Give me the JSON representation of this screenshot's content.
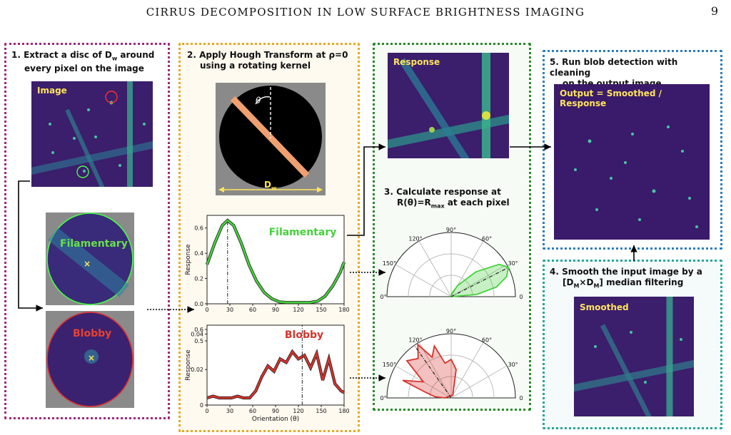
{
  "header": {
    "title": "CIRRUS DECOMPOSITION IN LOW SURFACE BRIGHTNESS IMAGING",
    "page_number": "9"
  },
  "steps": {
    "step1": "1. Extract a disc of Dᵤ around every pixel on the image",
    "step1_line1": "1.  Extract a disc of D",
    "step1_sub": "w",
    "step1_line1b": " around",
    "step1_line2": "every pixel on the image",
    "step2_line1": "2.  Apply Hough Transform at ρ=0",
    "step2_line2": "using a rotating kernel",
    "step3_line1": "3.  Calculate response at",
    "step3_line2a": "R(θ)=R",
    "step3_sub": "max",
    "step3_line2b": " at each pixel",
    "step4_line1": "4.  Smooth the input image by a",
    "step4_line2a": "[D",
    "step4_sub1": "M",
    "step4_mid": "×D",
    "step4_sub2": "M",
    "step4_line2b": "] median filtering",
    "step5_line1": "5.  Run blob detection with cleaning",
    "step5_line2": "on the output image"
  },
  "images": {
    "image_label": "Image",
    "response_label": "Response",
    "output_label": "Output = Smoothed / Response",
    "smoothed_label": "Smoothed",
    "filamentary_label": "Filamentary",
    "blobby_label": "Blobby",
    "kernel_theta": "θ",
    "kernel_dw": "D",
    "kernel_dw_sub": "w"
  },
  "plots": {
    "ylabel": "Response",
    "xlabel": "Orientation (θ)",
    "filamentary_label": "Filamentary",
    "blobby_label": "Blobby",
    "x_ticks": [
      "0",
      "30",
      "60",
      "90",
      "120",
      "150",
      "180"
    ],
    "fil_y_ticks": [
      "0.0",
      "0.2",
      "0.4",
      "0.6"
    ],
    "blob_y_ticks_lower": [
      "0",
      "0.02",
      "0.04"
    ],
    "blob_y_ticks_upper": [
      "0.5",
      "0.6"
    ],
    "polar_ticks": [
      "180°",
      "150°",
      "120°",
      "90°",
      "60°",
      "30°",
      "0°"
    ]
  },
  "chart_data": [
    {
      "type": "line",
      "series": [
        {
          "name": "Filamentary",
          "x": [
            0,
            10,
            20,
            27,
            35,
            45,
            55,
            65,
            75,
            85,
            95,
            105,
            115,
            125,
            135,
            145,
            155,
            165,
            175,
            180
          ],
          "y": [
            0.31,
            0.48,
            0.62,
            0.66,
            0.62,
            0.48,
            0.31,
            0.18,
            0.09,
            0.04,
            0.015,
            0.01,
            0.01,
            0.01,
            0.01,
            0.02,
            0.06,
            0.14,
            0.25,
            0.33
          ]
        }
      ],
      "xlabel": "",
      "ylabel": "Response",
      "xlim": [
        0,
        180
      ],
      "ylim": [
        0,
        0.7
      ],
      "marker_x": 27
    },
    {
      "type": "line",
      "series": [
        {
          "name": "Blobby",
          "x": [
            0,
            8,
            16,
            24,
            32,
            40,
            48,
            56,
            64,
            72,
            80,
            88,
            96,
            104,
            112,
            120,
            128,
            136,
            144,
            152,
            160,
            168,
            176,
            180
          ],
          "y": [
            0.004,
            0.005,
            0.004,
            0.004,
            0.004,
            0.005,
            0.004,
            0.004,
            0.008,
            0.016,
            0.022,
            0.019,
            0.026,
            0.024,
            0.03,
            0.026,
            0.028,
            0.021,
            0.029,
            0.014,
            0.026,
            0.012,
            0.008,
            0.007
          ]
        }
      ],
      "xlabel": "Orientation (θ)",
      "ylabel": "Response",
      "xlim": [
        0,
        180
      ],
      "ylim": [
        0,
        0.045
      ],
      "marker_x": 125
    }
  ],
  "colors": {
    "panel1": "#a0287a",
    "panel2": "#e8a825",
    "panel3": "#2a8a2a",
    "panel4": "#26a69a",
    "panel5": "#2b7dbd",
    "fil": "#44d23a",
    "blob": "#d8322a",
    "label_yellow": "#ffe45c"
  }
}
